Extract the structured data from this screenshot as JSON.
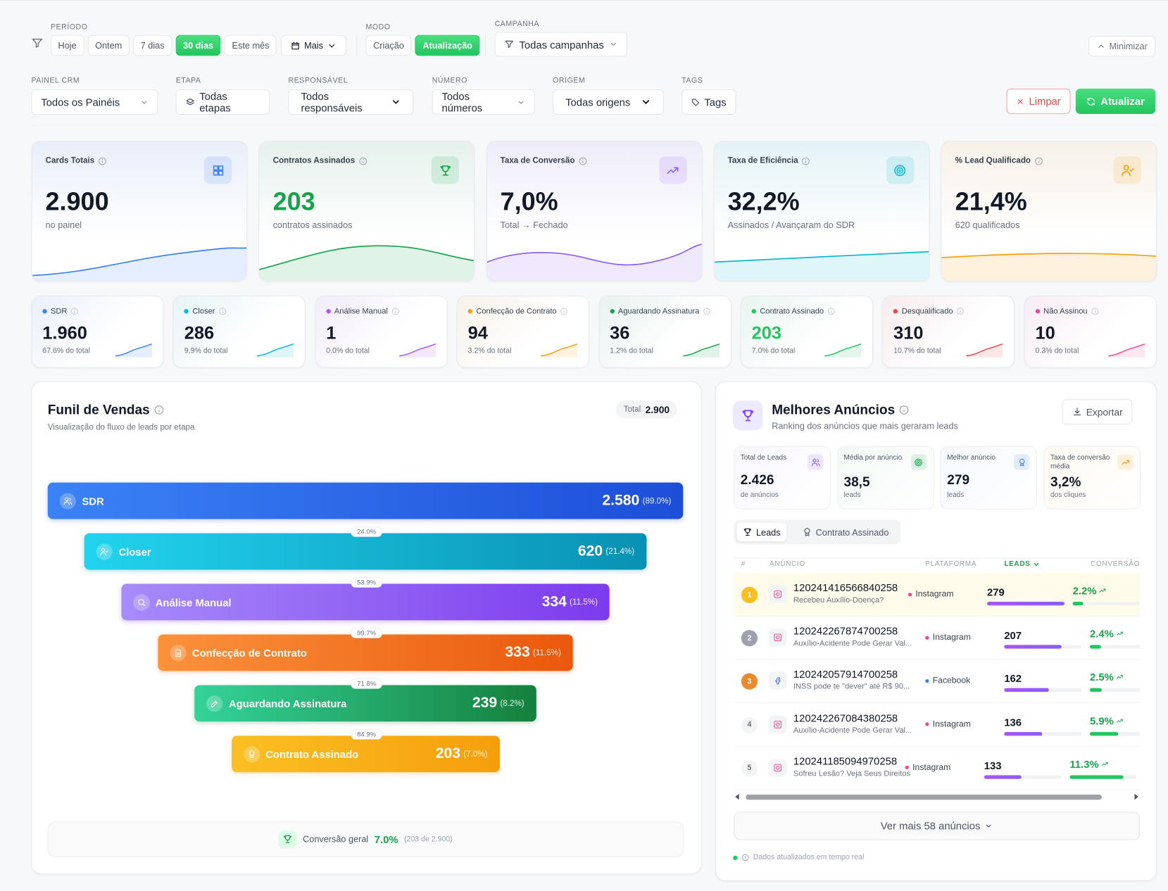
{
  "filters": {
    "periodo": {
      "label": "PERÍODO",
      "options": [
        "Hoje",
        "Ontem",
        "7 dias",
        "30 dias",
        "Este mês",
        "Mais"
      ],
      "active": 3
    },
    "modo": {
      "label": "MODO",
      "options": [
        "Criação",
        "Atualização"
      ],
      "active": 1
    },
    "campanha": {
      "label": "CAMPANHA",
      "value": "Todas campanhas"
    },
    "minimize": "Minimizar",
    "fields": [
      {
        "label": "PAINEL CRM",
        "value": "Todos os Painéis"
      },
      {
        "label": "ETAPA",
        "value": "Todas etapas"
      },
      {
        "label": "RESPONSÁVEL",
        "value": "Todos responsáveis"
      },
      {
        "label": "NÚMERO",
        "value": "Todos números"
      },
      {
        "label": "ORIGEM",
        "value": "Todas origens"
      },
      {
        "label": "TAGS",
        "value": "Tags"
      }
    ],
    "clear": "Limpar",
    "refresh": "Atualizar"
  },
  "kpis": [
    {
      "title": "Cards Totais",
      "value": "2.900",
      "sub": "no painel",
      "color": "#3b82f6"
    },
    {
      "title": "Contratos Assinados",
      "value": "203",
      "sub": "contratos assinados",
      "color": "#16a34a"
    },
    {
      "title": "Taxa de Conversão",
      "value": "7,0%",
      "sub": "Total → Fechado",
      "color": "#8b5cf6"
    },
    {
      "title": "Taxa de Eficiência",
      "value": "32,2%",
      "sub": "Assinados / Avançaram do SDR",
      "color": "#06b6d4"
    },
    {
      "title": "% Lead Qualificado",
      "value": "21,4%",
      "sub": "620 qualificados",
      "color": "#f59e0b"
    }
  ],
  "stages": [
    {
      "name": "SDR",
      "value": "1.960",
      "sub": "67.6% do total",
      "color": "#3b82f6"
    },
    {
      "name": "Closer",
      "value": "286",
      "sub": "9.9% do total",
      "color": "#06b6d4"
    },
    {
      "name": "Análise Manual",
      "value": "1",
      "sub": "0.0% do total",
      "color": "#a855f7"
    },
    {
      "name": "Confecção de Contrato",
      "value": "94",
      "sub": "3.2% do total",
      "color": "#f59e0b"
    },
    {
      "name": "Aguardando Assinatura",
      "value": "36",
      "sub": "1.2% do total",
      "color": "#16a34a"
    },
    {
      "name": "Contrato Assinado",
      "value": "203",
      "sub": "7.0% do total",
      "color": "#22c55e"
    },
    {
      "name": "Desqualificado",
      "value": "310",
      "sub": "10.7% do total",
      "color": "#ef4444"
    },
    {
      "name": "Não Assinou",
      "value": "10",
      "sub": "0.3% do total",
      "color": "#ec4899"
    }
  ],
  "funnel": {
    "title": "Funil de Vendas",
    "subtitle": "Visualização do fluxo de leads por etapa",
    "total_label": "Total",
    "total": "2.900",
    "rows": [
      {
        "name": "SDR",
        "value": "2.580",
        "pct": "(89.0%)",
        "colors": [
          "#3b82f6",
          "#1d4ed8"
        ]
      },
      {
        "name": "Closer",
        "value": "620",
        "pct": "(21.4%)",
        "rate": "24.0%",
        "colors": [
          "#22d3ee",
          "#0891b2"
        ]
      },
      {
        "name": "Análise Manual",
        "value": "334",
        "pct": "(11.5%)",
        "rate": "53.9%",
        "colors": [
          "#a78bfa",
          "#7c3aed"
        ]
      },
      {
        "name": "Confecção de Contrato",
        "value": "333",
        "pct": "(11.5%)",
        "rate": "99.7%",
        "colors": [
          "#fb923c",
          "#ea580c"
        ]
      },
      {
        "name": "Aguardando Assinatura",
        "value": "239",
        "pct": "(8.2%)",
        "rate": "71.8%",
        "colors": [
          "#34d399",
          "#15803d"
        ]
      },
      {
        "name": "Contrato Assinado",
        "value": "203",
        "pct": "(7.0%)",
        "rate": "84.9%",
        "colors": [
          "#fbbf24",
          "#f59e0b"
        ]
      }
    ],
    "footer_label": "Conversão geral",
    "footer_value": "7.0%",
    "footer_detail": "(203 de 2.900)"
  },
  "ads": {
    "title": "Melhores Anúncios",
    "subtitle": "Ranking dos anúncios que mais geraram leads",
    "export": "Exportar",
    "stats": [
      {
        "label": "Total de Leads",
        "value": "2.426",
        "sub": "de anúncios",
        "color": "#8b5cf6"
      },
      {
        "label": "Média por anúncio",
        "value": "38,5",
        "sub": "leads",
        "color": "#16a34a"
      },
      {
        "label": "Melhor anúncio",
        "value": "279",
        "sub": "leads",
        "color": "#3b82f6"
      },
      {
        "label": "Taxa de conversão média",
        "value": "3,2%",
        "sub": "dos cliques",
        "color": "#f59e0b"
      }
    ],
    "tabs": [
      "Leads",
      "Contrato Assinado"
    ],
    "columns": [
      "#",
      "ANÚNCIO",
      "PLATAFORMA",
      "LEADS",
      "CONVERSÃO"
    ],
    "rows": [
      {
        "rank": "1",
        "id": "120241416566840258",
        "name": "Recebeu Auxílio-Doença?",
        "platform": "Instagram",
        "platform_color": "#ec4899",
        "leads": "279",
        "conversion": "2.2%"
      },
      {
        "rank": "2",
        "id": "120242267874700258",
        "name": "Auxílio-Acidente Pode Gerar Val...",
        "platform": "Instagram",
        "platform_color": "#ec4899",
        "leads": "207",
        "conversion": "2.4%"
      },
      {
        "rank": "3",
        "id": "120242057914700258",
        "name": "INSS pode te \"dever\" até R$ 90...",
        "platform": "Facebook",
        "platform_color": "#3b82f6",
        "leads": "162",
        "conversion": "2.5%"
      },
      {
        "rank": "4",
        "id": "120242267084380258",
        "name": "Auxílio-Acidente Pode Gerar Val...",
        "platform": "Instagram",
        "platform_color": "#ec4899",
        "leads": "136",
        "conversion": "5.9%"
      },
      {
        "rank": "5",
        "id": "120241185094970258",
        "name": "Sofreu Lesão? Veja Seus Direitos",
        "platform": "Instagram",
        "platform_color": "#ec4899",
        "leads": "133",
        "conversion": "11.3%"
      }
    ],
    "more": "Ver mais 58 anúncios",
    "footer": "Dados atualizados em tempo real"
  }
}
